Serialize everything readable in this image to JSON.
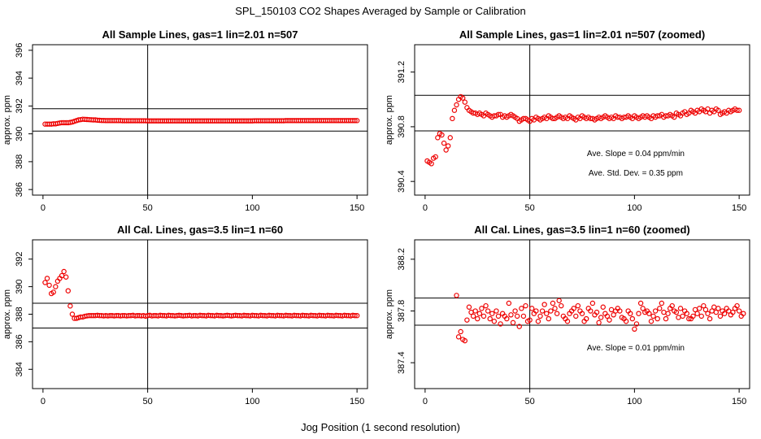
{
  "figure": {
    "title": "SPL_150103  CO2 Shapes Averaged by Sample or Calibration",
    "xlabel": "Jog Position (1 second resolution)"
  },
  "colors": {
    "points": "#ee0000",
    "axes": "#000000"
  },
  "chart_data": [
    {
      "type": "scatter",
      "title": "All Sample Lines, gas=1 lin=2.01 n=507",
      "ylabel": "approx. ppm",
      "xlim": [
        -5,
        155
      ],
      "ylim": [
        385.6,
        396.4
      ],
      "xticks": [
        0,
        50,
        100,
        150
      ],
      "yticks": [
        386,
        388,
        390,
        392,
        394,
        396
      ],
      "ytick_labels": [
        "386",
        "388",
        "390",
        "392",
        "394",
        "396"
      ],
      "vline": 50,
      "hlines": [
        390.2,
        391.8
      ],
      "annotations": [],
      "x_start": 1,
      "y": [
        390.7,
        390.7,
        390.7,
        390.7,
        390.72,
        390.72,
        390.75,
        390.78,
        390.8,
        390.8,
        390.8,
        390.8,
        390.82,
        390.85,
        390.9,
        390.95,
        391.0,
        391.02,
        391.05,
        391.04,
        391.03,
        391.02,
        391.01,
        391.0,
        391.0,
        390.98,
        390.97,
        390.96,
        390.96,
        390.95,
        390.95,
        390.95,
        390.95,
        390.95,
        390.95,
        390.95,
        390.95,
        390.94,
        390.94,
        390.94,
        390.94,
        390.94,
        390.94,
        390.94,
        390.94,
        390.94,
        390.94,
        390.94,
        390.94,
        390.93,
        390.93,
        390.93,
        390.93,
        390.93,
        390.93,
        390.93,
        390.93,
        390.93,
        390.93,
        390.93,
        390.93,
        390.93,
        390.93,
        390.93,
        390.93,
        390.93,
        390.93,
        390.93,
        390.93,
        390.93,
        390.93,
        390.93,
        390.93,
        390.93,
        390.93,
        390.93,
        390.93,
        390.93,
        390.93,
        390.93,
        390.93,
        390.93,
        390.93,
        390.93,
        390.93,
        390.93,
        390.93,
        390.93,
        390.93,
        390.93,
        390.93,
        390.93,
        390.93,
        390.93,
        390.93,
        390.93,
        390.93,
        390.93,
        390.93,
        390.93,
        390.94,
        390.94,
        390.94,
        390.94,
        390.94,
        390.94,
        390.94,
        390.94,
        390.94,
        390.94,
        390.94,
        390.94,
        390.94,
        390.94,
        390.94,
        390.95,
        390.95,
        390.95,
        390.95,
        390.95,
        390.95,
        390.95,
        390.95,
        390.95,
        390.95,
        390.95,
        390.95,
        390.95,
        390.95,
        390.95,
        390.95,
        390.95,
        390.95,
        390.95,
        390.95,
        390.95,
        390.95,
        390.95,
        390.95,
        390.95,
        390.95,
        390.95,
        390.95,
        390.95,
        390.95,
        390.95,
        390.95,
        390.95,
        390.95,
        390.95
      ]
    },
    {
      "type": "scatter",
      "title": "All Sample Lines, gas=1 lin=2.01 n=507 (zoomed)",
      "ylabel": "approx. ppm",
      "xlim": [
        -5,
        155
      ],
      "ylim": [
        390.3,
        391.4
      ],
      "xticks": [
        0,
        50,
        100,
        150
      ],
      "yticks": [
        390.4,
        390.8,
        391.2
      ],
      "ytick_labels": [
        "390.4",
        "390.8",
        "391.2"
      ],
      "vline": 50,
      "hlines": [
        390.77,
        391.03
      ],
      "annotations": [
        "Ave. Slope =  0.04  ppm/min",
        "Ave. Std. Dev. =  0.35  ppm"
      ],
      "x_start": 1,
      "y": [
        390.55,
        390.54,
        390.53,
        390.57,
        390.58,
        390.72,
        390.75,
        390.74,
        390.68,
        390.63,
        390.66,
        390.72,
        390.86,
        390.92,
        390.96,
        391.0,
        391.02,
        391.01,
        390.98,
        390.94,
        390.92,
        390.91,
        390.9,
        390.9,
        390.89,
        390.9,
        390.89,
        390.88,
        390.9,
        390.89,
        390.88,
        390.87,
        390.88,
        390.88,
        390.89,
        390.89,
        390.87,
        390.88,
        390.87,
        390.88,
        390.89,
        390.88,
        390.87,
        390.86,
        390.84,
        390.85,
        390.86,
        390.86,
        390.85,
        390.84,
        390.86,
        390.85,
        390.87,
        390.86,
        390.85,
        390.86,
        390.87,
        390.86,
        390.88,
        390.87,
        390.86,
        390.86,
        390.87,
        390.88,
        390.87,
        390.86,
        390.87,
        390.86,
        390.88,
        390.87,
        390.86,
        390.85,
        390.87,
        390.86,
        390.88,
        390.87,
        390.86,
        390.87,
        390.86,
        390.86,
        390.85,
        390.86,
        390.87,
        390.86,
        390.87,
        390.88,
        390.87,
        390.86,
        390.87,
        390.86,
        390.88,
        390.87,
        390.87,
        390.86,
        390.87,
        390.87,
        390.88,
        390.87,
        390.86,
        390.88,
        390.87,
        390.86,
        390.87,
        390.88,
        390.87,
        390.88,
        390.87,
        390.86,
        390.88,
        390.87,
        390.88,
        390.88,
        390.89,
        390.87,
        390.88,
        390.88,
        390.89,
        390.88,
        390.87,
        390.9,
        390.89,
        390.88,
        390.9,
        390.91,
        390.89,
        390.9,
        390.92,
        390.91,
        390.9,
        390.92,
        390.91,
        390.93,
        390.92,
        390.91,
        390.93,
        390.9,
        390.92,
        390.91,
        390.93,
        390.92,
        390.89,
        390.9,
        390.91,
        390.9,
        390.92,
        390.91,
        390.92,
        390.93,
        390.92,
        390.92
      ]
    },
    {
      "type": "scatter",
      "title": "All Cal. Lines, gas=3.5 lin=1 n=60",
      "ylabel": "approx. ppm",
      "xlim": [
        -5,
        155
      ],
      "ylim": [
        382.6,
        393.4
      ],
      "xticks": [
        0,
        50,
        100,
        150
      ],
      "yticks": [
        384,
        386,
        388,
        390,
        392
      ],
      "ytick_labels": [
        "384",
        "386",
        "388",
        "390",
        "392"
      ],
      "vline": 50,
      "hlines": [
        387.0,
        388.8
      ],
      "annotations": [],
      "x_start": 1,
      "y": [
        390.3,
        390.6,
        390.1,
        389.5,
        389.6,
        390.0,
        390.4,
        390.6,
        390.8,
        391.1,
        390.7,
        389.7,
        388.6,
        388.0,
        387.7,
        387.7,
        387.75,
        387.8,
        387.8,
        387.85,
        387.88,
        387.9,
        387.9,
        387.9,
        387.9,
        387.92,
        387.9,
        387.9,
        387.88,
        387.9,
        387.88,
        387.9,
        387.9,
        387.88,
        387.9,
        387.9,
        387.88,
        387.9,
        387.9,
        387.88,
        387.9,
        387.9,
        387.92,
        387.88,
        387.9,
        387.9,
        387.88,
        387.9,
        387.86,
        387.9,
        387.92,
        387.88,
        387.9,
        387.9,
        387.88,
        387.92,
        387.9,
        387.9,
        387.88,
        387.92,
        387.9,
        387.9,
        387.88,
        387.9,
        387.92,
        387.9,
        387.88,
        387.9,
        387.9,
        387.92,
        387.88,
        387.9,
        387.9,
        387.88,
        387.92,
        387.9,
        387.9,
        387.88,
        387.92,
        387.9,
        387.9,
        387.88,
        387.92,
        387.9,
        387.9,
        387.88,
        387.9,
        387.92,
        387.9,
        387.88,
        387.9,
        387.92,
        387.9,
        387.9,
        387.88,
        387.92,
        387.9,
        387.9,
        387.88,
        387.92,
        387.9,
        387.9,
        387.88,
        387.92,
        387.9,
        387.9,
        387.88,
        387.92,
        387.9,
        387.9,
        387.88,
        387.92,
        387.9,
        387.9,
        387.88,
        387.92,
        387.9,
        387.9,
        387.88,
        387.92,
        387.9,
        387.9,
        387.88,
        387.92,
        387.9,
        387.9,
        387.88,
        387.92,
        387.9,
        387.9,
        387.88,
        387.92,
        387.9,
        387.9,
        387.88,
        387.92,
        387.9,
        387.9,
        387.88,
        387.92,
        387.9,
        387.9,
        387.88,
        387.92,
        387.9,
        387.9,
        387.88,
        387.92,
        387.9,
        387.9
      ]
    },
    {
      "type": "scatter",
      "title": "All Cal. Lines, gas=3.5 lin=1 n=60 (zoomed)",
      "ylabel": "approx. ppm",
      "xlim": [
        -5,
        155
      ],
      "ylim": [
        387.2,
        388.35
      ],
      "xticks": [
        0,
        50,
        100,
        150
      ],
      "yticks": [
        387.4,
        387.8,
        388.2
      ],
      "ytick_labels": [
        "387.4",
        "387.8",
        "388.2"
      ],
      "vline": 50,
      "hlines": [
        387.69,
        387.9
      ],
      "annotations": [
        "Ave. Slope =  0.01  ppm/min"
      ],
      "x_start": 15,
      "y": [
        387.92,
        387.6,
        387.64,
        387.58,
        387.57,
        387.73,
        387.83,
        387.79,
        387.76,
        387.8,
        387.74,
        387.78,
        387.82,
        387.76,
        387.84,
        387.8,
        387.74,
        387.78,
        387.72,
        387.8,
        387.76,
        387.7,
        387.78,
        387.76,
        387.74,
        387.86,
        387.77,
        387.71,
        387.8,
        387.76,
        387.68,
        387.82,
        387.76,
        387.84,
        387.72,
        387.73,
        387.82,
        387.78,
        387.8,
        387.72,
        387.76,
        387.8,
        387.85,
        387.78,
        387.74,
        387.8,
        387.86,
        387.82,
        387.78,
        387.88,
        387.84,
        387.76,
        387.74,
        387.72,
        387.78,
        387.8,
        387.82,
        387.76,
        387.84,
        387.8,
        387.78,
        387.72,
        387.74,
        387.82,
        387.8,
        387.86,
        387.77,
        387.79,
        387.71,
        387.75,
        387.83,
        387.78,
        387.76,
        387.73,
        387.81,
        387.77,
        387.8,
        387.82,
        387.8,
        387.75,
        387.74,
        387.72,
        387.8,
        387.78,
        387.74,
        387.66,
        387.7,
        387.78,
        387.86,
        387.82,
        387.79,
        387.8,
        387.78,
        387.72,
        387.76,
        387.8,
        387.74,
        387.82,
        387.86,
        387.79,
        387.74,
        387.78,
        387.82,
        387.84,
        387.8,
        387.79,
        387.75,
        387.82,
        387.76,
        387.8,
        387.78,
        387.74,
        387.74,
        387.76,
        387.81,
        387.78,
        387.82,
        387.76,
        387.84,
        387.81,
        387.78,
        387.74,
        387.8,
        387.83,
        387.79,
        387.82,
        387.76,
        387.8,
        387.78,
        387.82,
        387.8,
        387.77,
        387.79,
        387.82,
        387.84,
        387.8,
        387.76,
        387.78
      ]
    }
  ]
}
